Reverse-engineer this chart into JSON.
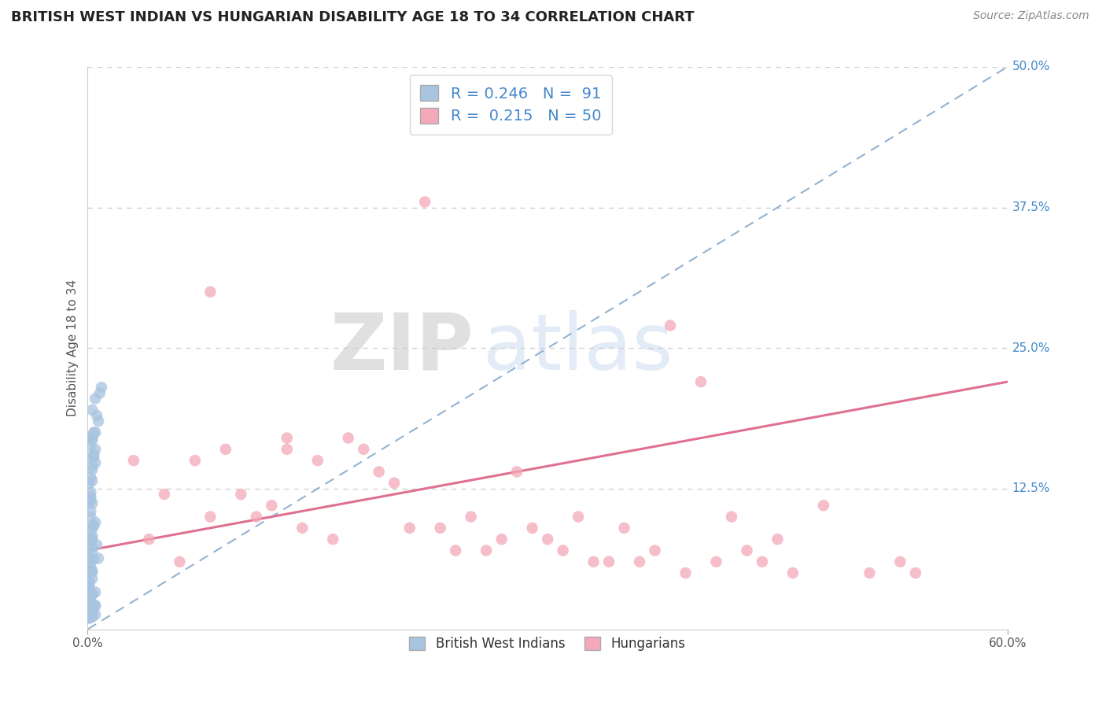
{
  "title": "BRITISH WEST INDIAN VS HUNGARIAN DISABILITY AGE 18 TO 34 CORRELATION CHART",
  "source_text": "Source: ZipAtlas.com",
  "ylabel": "Disability Age 18 to 34",
  "xlim": [
    0.0,
    0.6
  ],
  "ylim": [
    0.0,
    0.5
  ],
  "ytick_labels_right": [
    "50.0%",
    "37.5%",
    "25.0%",
    "12.5%"
  ],
  "ytick_vals_right": [
    0.5,
    0.375,
    0.25,
    0.125
  ],
  "legend_R1": "0.246",
  "legend_N1": "91",
  "legend_R2": "0.215",
  "legend_N2": "50",
  "blue_color": "#a8c4e0",
  "pink_color": "#f4a8b8",
  "trendline1_color": "#88aacc",
  "trendline2_color": "#e07090",
  "title_color": "#222222",
  "label_color": "#4488cc",
  "background_color": "#ffffff",
  "blue_trendline": [
    0.0,
    0.0,
    0.6,
    0.5
  ],
  "pink_trendline": [
    0.0,
    0.07,
    0.6,
    0.22
  ],
  "blue_scatter_x": [
    0.005,
    0.008,
    0.003,
    0.006,
    0.004,
    0.002,
    0.007,
    0.009,
    0.005,
    0.003,
    0.002,
    0.004,
    0.003,
    0.002,
    0.005,
    0.002,
    0.003,
    0.004,
    0.005,
    0.003,
    0.001,
    0.002,
    0.002,
    0.003,
    0.002,
    0.001,
    0.002,
    0.003,
    0.002,
    0.005,
    0.004,
    0.002,
    0.003,
    0.001,
    0.003,
    0.003,
    0.002,
    0.001,
    0.003,
    0.003,
    0.006,
    0.004,
    0.002,
    0.002,
    0.003,
    0.001,
    0.002,
    0.007,
    0.003,
    0.001,
    0.001,
    0.001,
    0.003,
    0.001,
    0.003,
    0.001,
    0.001,
    0.001,
    0.001,
    0.001,
    0.003,
    0.005,
    0.003,
    0.001,
    0.003,
    0.003,
    0.005,
    0.003,
    0.001,
    0.003,
    0.002,
    0.001,
    0.002,
    0.001,
    0.001,
    0.001,
    0.001,
    0.002,
    0.001,
    0.001,
    0.005,
    0.003,
    0.001,
    0.003,
    0.001,
    0.003,
    0.001,
    0.001,
    0.003,
    0.001,
    0.005
  ],
  "blue_scatter_y": [
    0.205,
    0.21,
    0.195,
    0.19,
    0.175,
    0.17,
    0.185,
    0.215,
    0.175,
    0.17,
    0.162,
    0.155,
    0.168,
    0.152,
    0.148,
    0.135,
    0.142,
    0.153,
    0.16,
    0.145,
    0.13,
    0.122,
    0.115,
    0.132,
    0.118,
    0.112,
    0.105,
    0.112,
    0.1,
    0.095,
    0.092,
    0.082,
    0.09,
    0.078,
    0.092,
    0.083,
    0.079,
    0.072,
    0.08,
    0.073,
    0.075,
    0.062,
    0.063,
    0.061,
    0.068,
    0.052,
    0.055,
    0.063,
    0.052,
    0.051,
    0.042,
    0.041,
    0.051,
    0.043,
    0.045,
    0.042,
    0.033,
    0.031,
    0.039,
    0.032,
    0.031,
    0.033,
    0.031,
    0.022,
    0.032,
    0.023,
    0.021,
    0.021,
    0.022,
    0.021,
    0.021,
    0.019,
    0.013,
    0.012,
    0.019,
    0.012,
    0.012,
    0.011,
    0.011,
    0.011,
    0.013,
    0.018,
    0.011,
    0.012,
    0.011,
    0.011,
    0.01,
    0.01,
    0.018,
    0.01,
    0.021
  ],
  "pink_scatter_x": [
    0.03,
    0.13,
    0.22,
    0.1,
    0.15,
    0.08,
    0.2,
    0.3,
    0.25,
    0.4,
    0.35,
    0.45,
    0.18,
    0.28,
    0.38,
    0.12,
    0.05,
    0.48,
    0.32,
    0.42,
    0.07,
    0.17,
    0.27,
    0.37,
    0.08,
    0.23,
    0.33,
    0.43,
    0.13,
    0.53,
    0.04,
    0.14,
    0.24,
    0.34,
    0.44,
    0.54,
    0.09,
    0.19,
    0.29,
    0.39,
    0.06,
    0.16,
    0.26,
    0.36,
    0.46,
    0.11,
    0.21,
    0.31,
    0.41,
    0.51
  ],
  "pink_scatter_y": [
    0.15,
    0.17,
    0.38,
    0.12,
    0.15,
    0.1,
    0.13,
    0.08,
    0.1,
    0.22,
    0.09,
    0.08,
    0.16,
    0.14,
    0.27,
    0.11,
    0.12,
    0.11,
    0.1,
    0.1,
    0.15,
    0.17,
    0.08,
    0.07,
    0.3,
    0.09,
    0.06,
    0.07,
    0.16,
    0.06,
    0.08,
    0.09,
    0.07,
    0.06,
    0.06,
    0.05,
    0.16,
    0.14,
    0.09,
    0.05,
    0.06,
    0.08,
    0.07,
    0.06,
    0.05,
    0.1,
    0.09,
    0.07,
    0.06,
    0.05
  ]
}
